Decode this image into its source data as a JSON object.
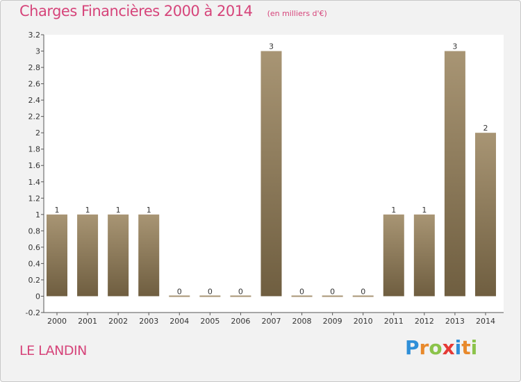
{
  "header": {
    "title": "Charges Financières 2000 à 2014",
    "subtitle": "(en milliers d'€)"
  },
  "footer": {
    "commune": "LE LANDIN",
    "brand_letters": [
      "P",
      "r",
      "o",
      "x",
      "i",
      "t",
      "i"
    ],
    "brand_colors": [
      "#2f8fd8",
      "#e8892b",
      "#8bc34a",
      "#e53935",
      "#2f8fd8",
      "#e8892b",
      "#8bc34a"
    ]
  },
  "chart_data": {
    "type": "bar",
    "categories": [
      "2000",
      "2001",
      "2002",
      "2003",
      "2004",
      "2005",
      "2006",
      "2007",
      "2008",
      "2009",
      "2010",
      "2011",
      "2012",
      "2013",
      "2014"
    ],
    "values": [
      1,
      1,
      1,
      1,
      0,
      0,
      0,
      3,
      0,
      0,
      0,
      1,
      1,
      3,
      2
    ],
    "data_labels": [
      "1",
      "1",
      "1",
      "1",
      "0",
      "0",
      "0",
      "3",
      "0",
      "0",
      "0",
      "1",
      "1",
      "3",
      "2"
    ],
    "yticks": [
      -0.2,
      0,
      0.2,
      0.4,
      0.6,
      0.8,
      1,
      1.2,
      1.4,
      1.6,
      1.8,
      2,
      2.2,
      2.4,
      2.6,
      2.8,
      3,
      3.2
    ],
    "ytick_labels": [
      "-0.2",
      "0",
      "0.2",
      "0.4",
      "0.6",
      "0.8",
      "1",
      "1.2",
      "1.4",
      "1.6",
      "1.8",
      "2",
      "2.2",
      "2.4",
      "2.6",
      "2.8",
      "3",
      "3.2"
    ],
    "ylim": [
      -0.2,
      3.2
    ],
    "grid": false,
    "bar_color_top": "#a89574",
    "bar_color_bottom": "#6f5e40"
  }
}
